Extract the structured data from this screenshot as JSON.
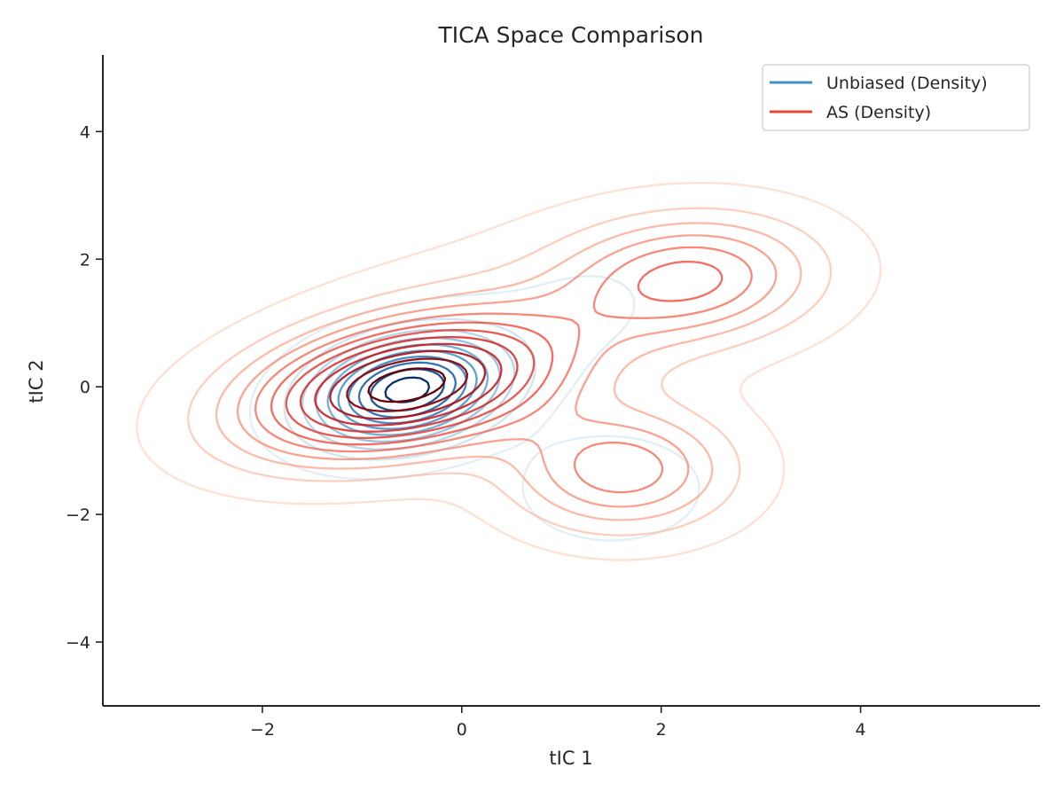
{
  "chart_data": {
    "type": "contour",
    "title": "TICA Space Comparison",
    "xlabel": "tIC 1",
    "ylabel": "tIC 2",
    "xlim": [
      -3.6,
      5.8
    ],
    "ylim": [
      -5.0,
      5.2
    ],
    "xticks": [
      -2,
      0,
      2,
      4
    ],
    "yticks": [
      -4,
      -2,
      0,
      2,
      4
    ],
    "xtick_labels": [
      "−2",
      "0",
      "2",
      "4"
    ],
    "ytick_labels": [
      "−4",
      "−2",
      "0",
      "2",
      "4"
    ],
    "grid": false,
    "legend_position": "top-right",
    "series": [
      {
        "name": "Unbiased (Density)",
        "color": "#4292c6",
        "colormap": "Blues",
        "levels": 10,
        "components": [
          {
            "cx": -0.55,
            "cy": -0.05,
            "sx": 0.62,
            "sy": 0.55,
            "rho": 0.25,
            "w": 0.85
          },
          {
            "cx": 1.5,
            "cy": -1.6,
            "sx": 0.6,
            "sy": 0.55,
            "rho": 0.0,
            "w": 0.1
          },
          {
            "cx": 1.2,
            "cy": 1.2,
            "sx": 0.8,
            "sy": 0.8,
            "rho": 0.2,
            "w": 0.08
          }
        ]
      },
      {
        "name": "AS (Density)",
        "color": "#e34a33",
        "colormap": "Reds",
        "levels": 12,
        "components": [
          {
            "cx": -0.6,
            "cy": 0.0,
            "sx": 1.05,
            "sy": 0.72,
            "rho": 0.35,
            "w": 0.55
          },
          {
            "cx": 2.3,
            "cy": 1.7,
            "sx": 0.85,
            "sy": 0.65,
            "rho": 0.1,
            "w": 0.2
          },
          {
            "cx": 1.6,
            "cy": -1.3,
            "sx": 0.75,
            "sy": 0.65,
            "rho": 0.0,
            "w": 0.17
          },
          {
            "cx": 0.6,
            "cy": 0.9,
            "sx": 1.4,
            "sy": 1.1,
            "rho": 0.3,
            "w": 0.12
          }
        ]
      }
    ]
  }
}
